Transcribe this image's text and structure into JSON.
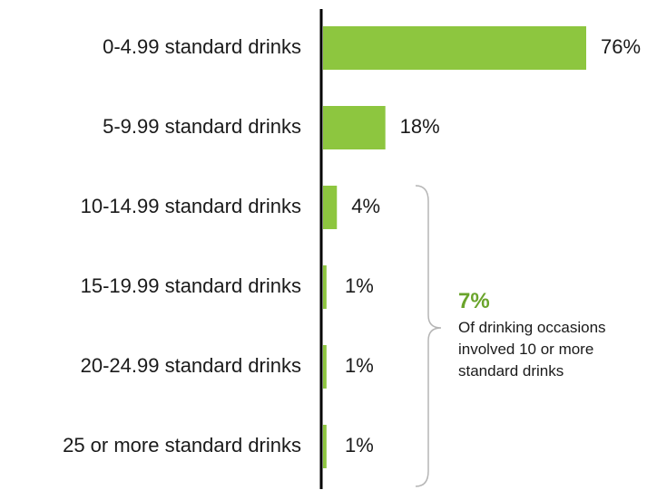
{
  "chart_data": {
    "type": "bar",
    "orientation": "horizontal",
    "categories": [
      "0-4.99 standard drinks",
      "5-9.99 standard drinks",
      "10-14.99 standard drinks",
      "15-19.99 standard drinks",
      "20-24.99 standard drinks",
      "25 or more standard drinks"
    ],
    "values": [
      76,
      18,
      4,
      1,
      1,
      1
    ],
    "value_labels": [
      "76%",
      "18%",
      "4%",
      "1%",
      "1%",
      "1%"
    ],
    "xlim": [
      0,
      76
    ],
    "grid": false,
    "bar_color": "#8dc63f",
    "axis_color": "#000000",
    "bracket_color": "#b5b5b5"
  },
  "callout": {
    "percent": "7%",
    "lines": [
      "Of drinking occasions",
      "involved 10 or more",
      "standard drinks"
    ],
    "color": "#6aa42b"
  }
}
